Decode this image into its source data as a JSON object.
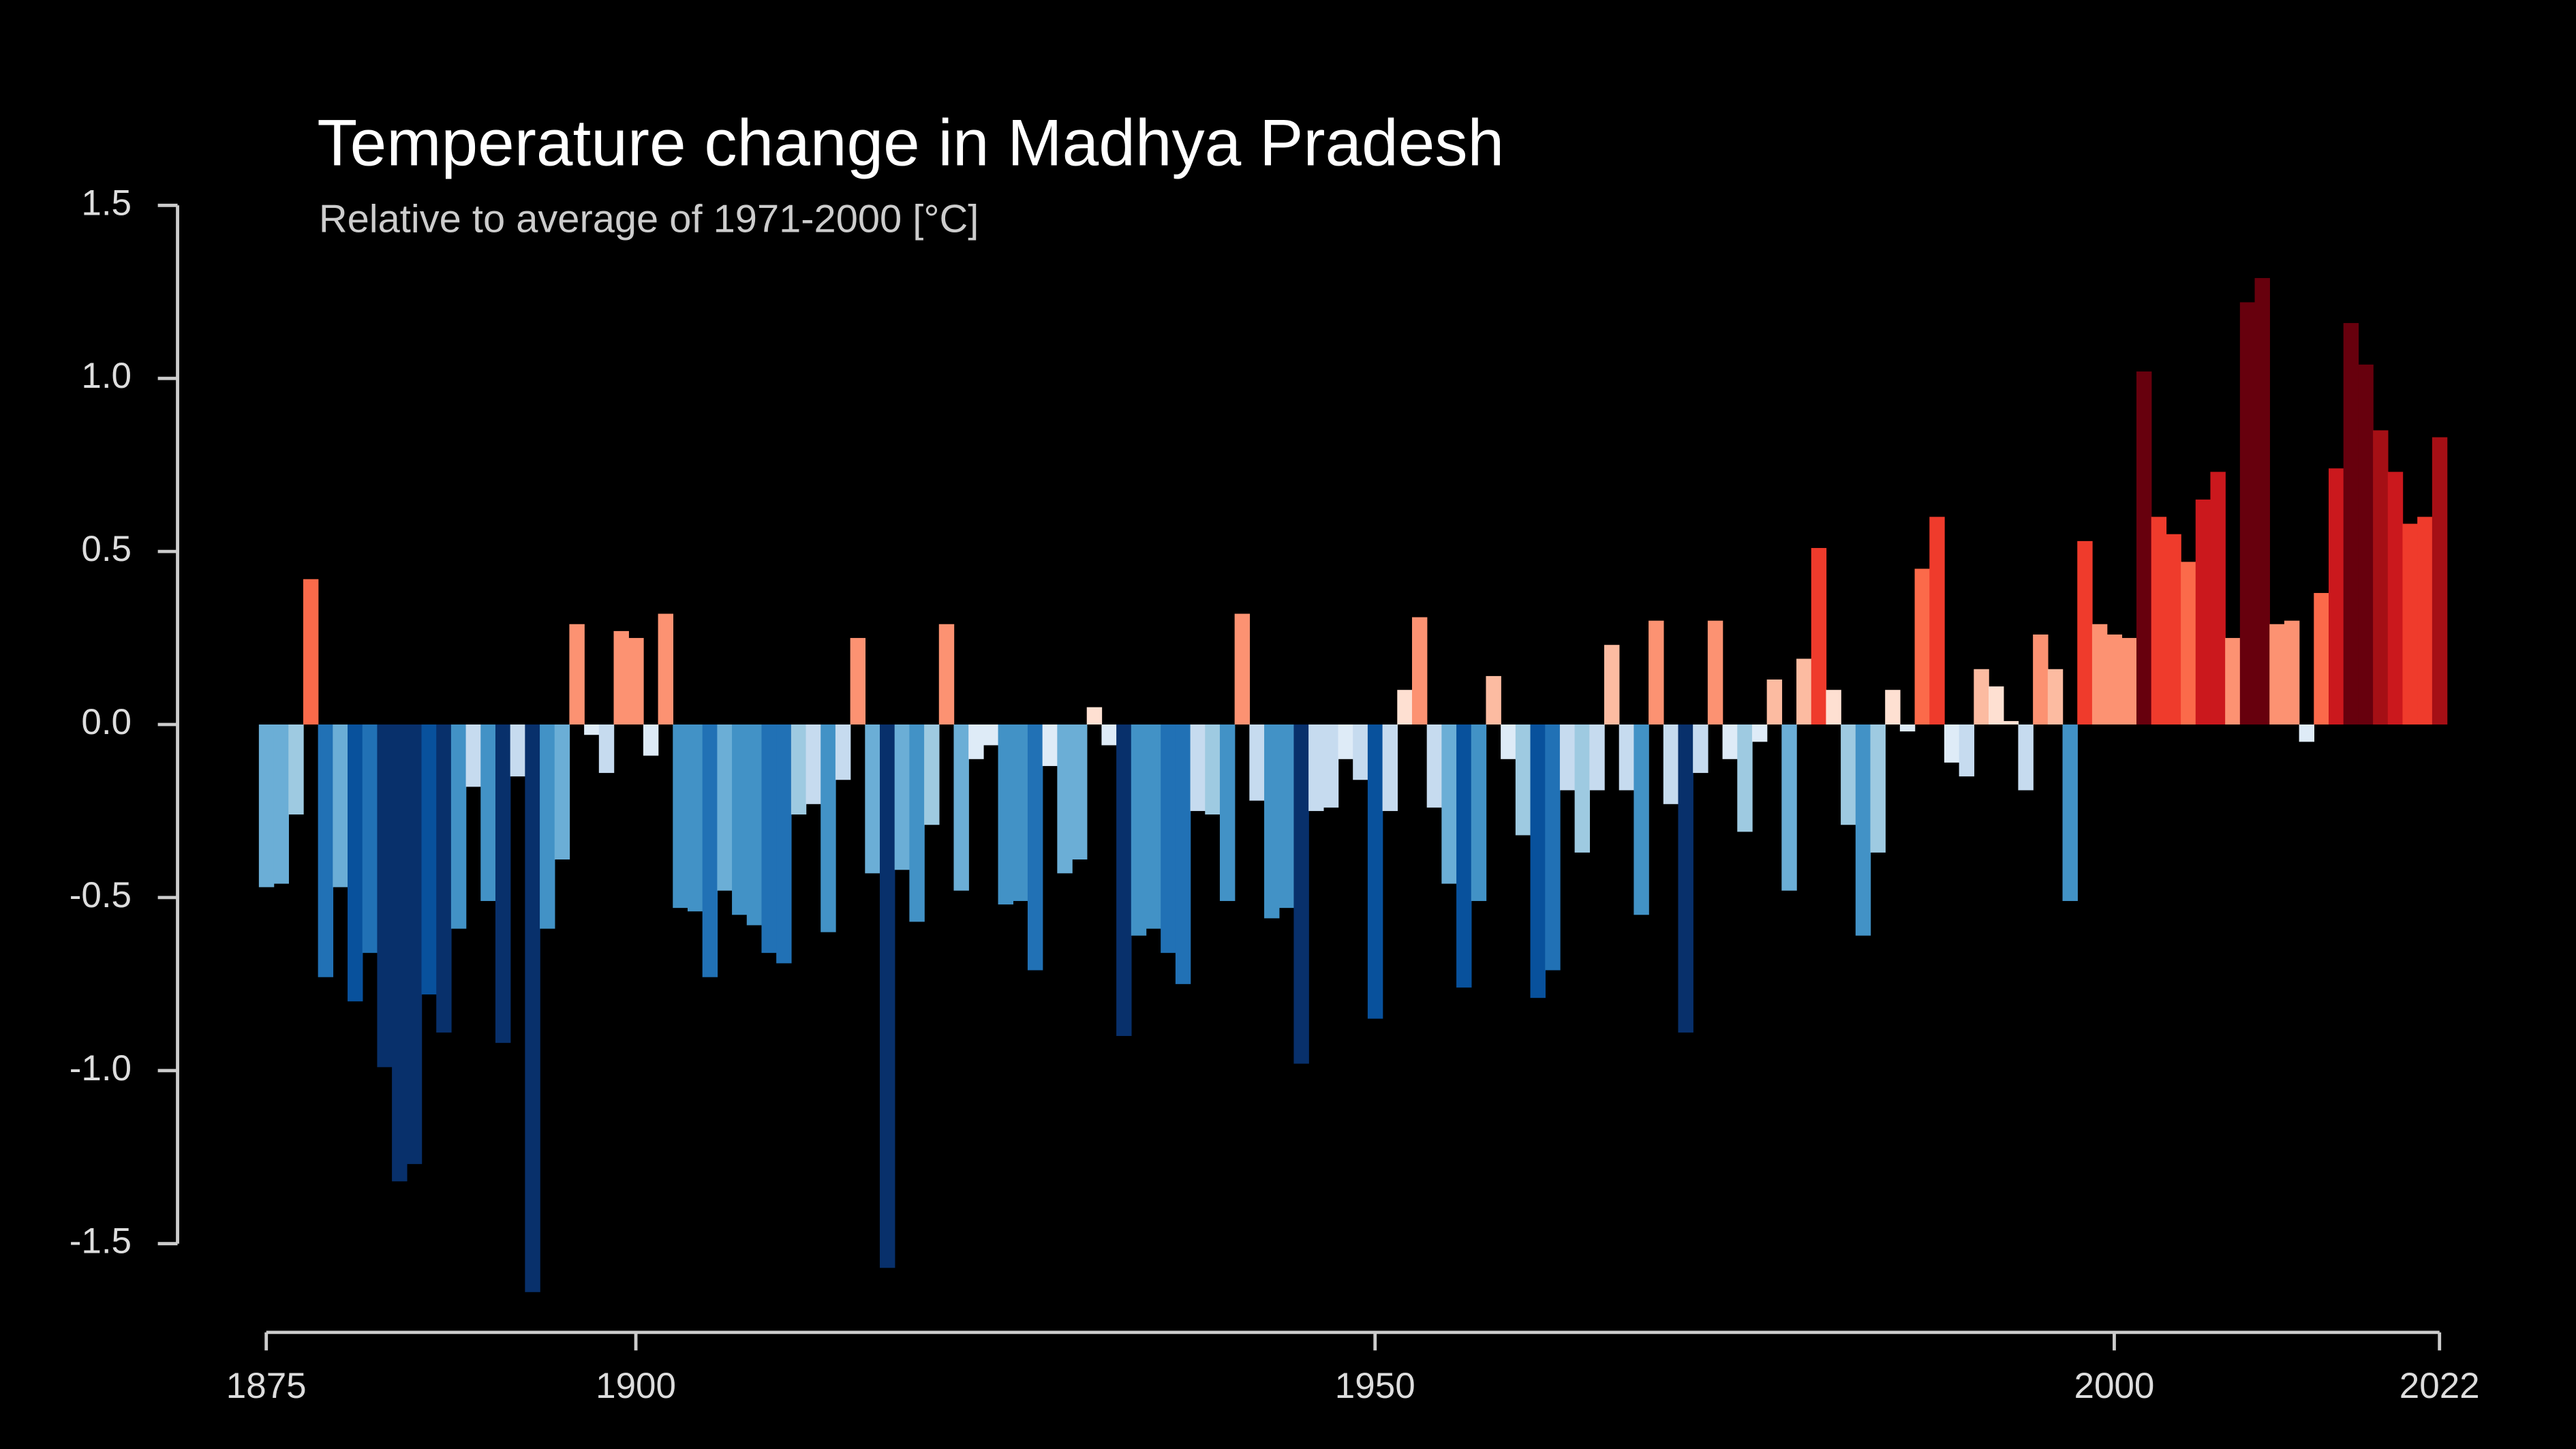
{
  "chart_data": {
    "type": "bar",
    "title": "Temperature change in Madhya Pradesh",
    "subtitle": "Relative to average of 1971-2000  [°C]",
    "x": [
      1875,
      1876,
      1877,
      1878,
      1879,
      1880,
      1881,
      1882,
      1883,
      1884,
      1885,
      1886,
      1887,
      1888,
      1889,
      1890,
      1891,
      1892,
      1893,
      1894,
      1895,
      1896,
      1897,
      1898,
      1899,
      1900,
      1901,
      1902,
      1903,
      1904,
      1905,
      1906,
      1907,
      1908,
      1909,
      1910,
      1911,
      1912,
      1913,
      1914,
      1915,
      1916,
      1917,
      1918,
      1919,
      1920,
      1921,
      1922,
      1923,
      1924,
      1925,
      1926,
      1927,
      1928,
      1929,
      1930,
      1931,
      1932,
      1933,
      1934,
      1935,
      1936,
      1937,
      1938,
      1939,
      1940,
      1941,
      1942,
      1943,
      1944,
      1945,
      1946,
      1947,
      1948,
      1949,
      1950,
      1951,
      1952,
      1953,
      1954,
      1955,
      1956,
      1957,
      1958,
      1959,
      1960,
      1961,
      1962,
      1963,
      1964,
      1965,
      1966,
      1967,
      1968,
      1969,
      1970,
      1971,
      1972,
      1973,
      1974,
      1975,
      1976,
      1977,
      1978,
      1979,
      1980,
      1981,
      1982,
      1983,
      1984,
      1985,
      1986,
      1987,
      1988,
      1989,
      1990,
      1991,
      1992,
      1993,
      1994,
      1995,
      1996,
      1997,
      1998,
      1999,
      2000,
      2001,
      2002,
      2003,
      2004,
      2005,
      2006,
      2007,
      2008,
      2009,
      2010,
      2011,
      2012,
      2013,
      2014,
      2015,
      2016,
      2017,
      2018,
      2019,
      2020,
      2021,
      2022
    ],
    "values": [
      -0.47,
      -0.46,
      -0.26,
      0.42,
      -0.73,
      -0.47,
      -0.8,
      -0.66,
      -0.99,
      -1.32,
      -1.27,
      -0.78,
      -0.89,
      -0.59,
      -0.18,
      -0.51,
      -0.92,
      -0.15,
      -1.64,
      -0.59,
      -0.39,
      0.29,
      -0.03,
      -0.14,
      0.27,
      0.25,
      -0.09,
      0.32,
      -0.53,
      -0.54,
      -0.73,
      -0.48,
      -0.55,
      -0.58,
      -0.66,
      -0.69,
      -0.26,
      -0.23,
      -0.6,
      -0.16,
      0.25,
      -0.43,
      -1.57,
      -0.42,
      -0.57,
      -0.29,
      0.29,
      -0.48,
      -0.1,
      -0.06,
      -0.52,
      -0.51,
      -0.71,
      -0.12,
      -0.43,
      -0.39,
      0.05,
      -0.06,
      -0.9,
      -0.61,
      -0.59,
      -0.66,
      -0.75,
      -0.25,
      -0.26,
      -0.51,
      0.32,
      -0.22,
      -0.56,
      -0.53,
      -0.98,
      -0.25,
      -0.24,
      -0.1,
      -0.16,
      -0.85,
      -0.25,
      0.1,
      0.31,
      -0.24,
      -0.46,
      -0.76,
      -0.51,
      0.14,
      -0.1,
      -0.32,
      -0.79,
      -0.71,
      -0.19,
      -0.37,
      -0.19,
      0.23,
      -0.19,
      -0.55,
      0.3,
      -0.23,
      -0.89,
      -0.14,
      0.3,
      -0.1,
      -0.31,
      -0.05,
      0.13,
      -0.48,
      0.19,
      0.51,
      0.1,
      -0.29,
      -0.61,
      -0.37,
      0.1,
      -0.02,
      0.45,
      0.6,
      -0.11,
      -0.15,
      0.16,
      0.11,
      0.01,
      -0.19,
      0.26,
      0.16,
      -0.51,
      0.53,
      0.29,
      0.26,
      0.25,
      1.02,
      0.6,
      0.55,
      0.47,
      0.65,
      0.73,
      0.25,
      1.22,
      1.29,
      0.29,
      0.3,
      -0.05,
      0.38,
      0.74,
      1.16,
      1.04,
      0.85,
      0.73,
      0.58,
      0.6,
      0.83
    ],
    "palette": [
      "#08306b",
      "#08519c",
      "#2171b5",
      "#4292c6",
      "#6baed6",
      "#9ecae1",
      "#c6dbef",
      "#deebf7",
      "#fee0d2",
      "#fcbba1",
      "#fc9272",
      "#fb6a4a",
      "#ef3b2c",
      "#cb181d",
      "#a50f15",
      "#67000d"
    ],
    "xlim": [
      1875,
      2022
    ],
    "xticks": [
      1875,
      1900,
      1950,
      2000,
      2022
    ],
    "ylim": [
      -1.5,
      1.5
    ],
    "yticks": [
      -1.5,
      {
        "value": -1,
        "label": "-1.0"
      },
      -0.5,
      {
        "value": 0,
        "label": "0.0"
      },
      0.5,
      {
        "value": 1,
        "label": "1.0"
      },
      1.5
    ]
  }
}
